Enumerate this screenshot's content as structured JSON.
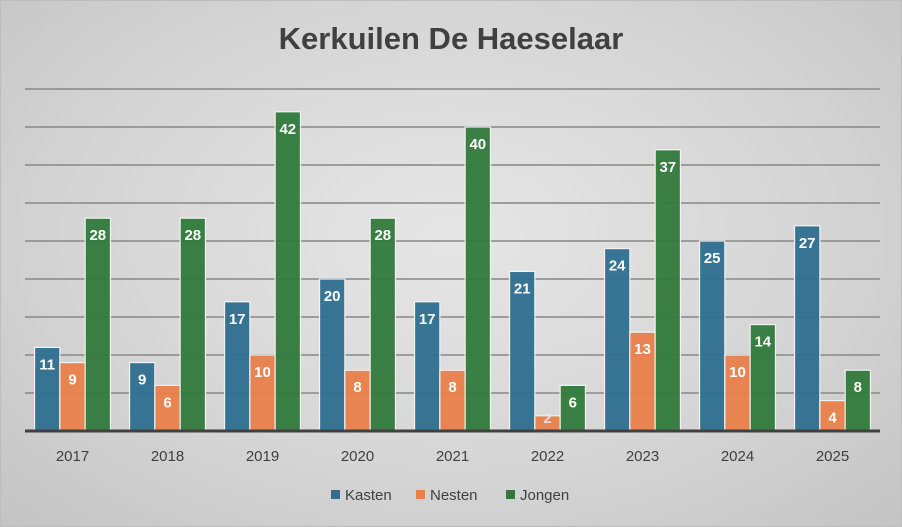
{
  "chart_data": {
    "type": "bar",
    "title": "Kerkuilen De Haeselaar",
    "categories": [
      "2017",
      "2018",
      "2019",
      "2020",
      "2021",
      "2022",
      "2023",
      "2024",
      "2025"
    ],
    "series": [
      {
        "name": "Kasten",
        "color": "#2e6e8e",
        "values": [
          11,
          9,
          17,
          20,
          17,
          21,
          24,
          25,
          27
        ]
      },
      {
        "name": "Nesten",
        "color": "#e8804a",
        "values": [
          9,
          6,
          10,
          8,
          8,
          2,
          13,
          10,
          4
        ]
      },
      {
        "name": "Jongen",
        "color": "#30793a",
        "values": [
          28,
          28,
          42,
          28,
          40,
          6,
          37,
          14,
          8
        ]
      }
    ],
    "ylim": [
      0,
      45
    ],
    "y_gridline_step": 5,
    "grid": true,
    "y_tick_labels_shown": false,
    "data_labels": true,
    "legend": "bottom"
  }
}
